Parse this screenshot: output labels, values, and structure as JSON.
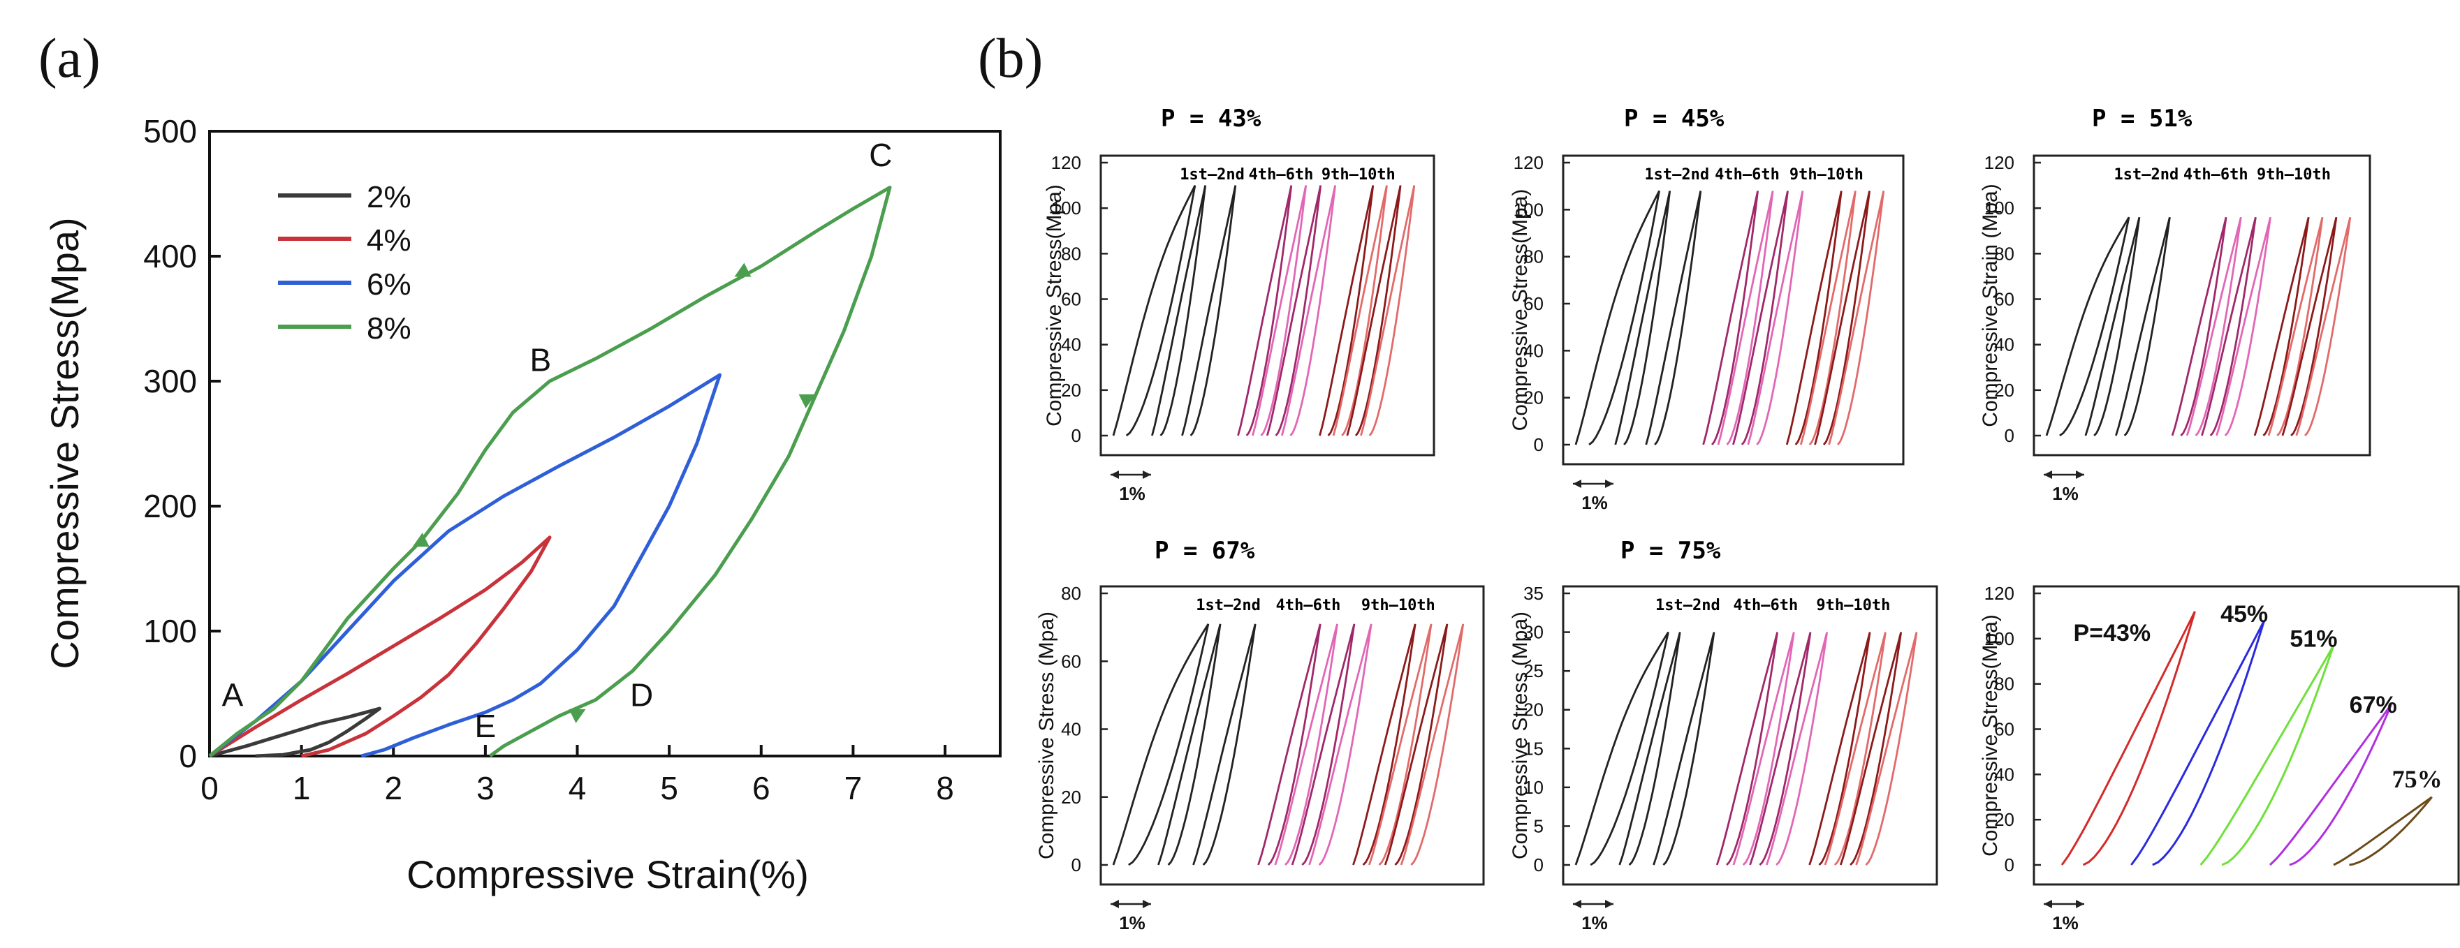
{
  "panels": {
    "a_label": "(a)",
    "b_label": "(b)"
  },
  "colors": {
    "s2": "#3a3a3a",
    "s4": "#c8323a",
    "s6": "#2f5fd8",
    "s8": "#4a9e4e",
    "black": "#222222",
    "magenta": "#a0286a",
    "pink": "#e266b6",
    "maroon": "#8c1a1a",
    "salmon": "#e26a6a",
    "p43": "#d42a2a",
    "p45": "#2a2ae0",
    "p51": "#6ee03a",
    "p67": "#b030e0",
    "p75": "#6b4a1a"
  },
  "chart_data": [
    {
      "id": "a",
      "type": "line",
      "title": "",
      "xlabel": "Compressive Strain(%)",
      "ylabel": "Compressive Stress(Mpa)",
      "xlim": [
        0,
        8.6
      ],
      "ylim": [
        0,
        500
      ],
      "xticks": [
        0,
        1,
        2,
        3,
        4,
        5,
        6,
        7,
        8
      ],
      "yticks": [
        0,
        100,
        200,
        300,
        400,
        500
      ],
      "legend": [
        "2%",
        "4%",
        "6%",
        "8%"
      ],
      "legend_position": "top-left",
      "series": [
        {
          "name": "2%",
          "color_key": "s2",
          "x": [
            0,
            0.4,
            0.8,
            1.2,
            1.5,
            1.7,
            1.85,
            1.7,
            1.5,
            1.3,
            1.1,
            0.8,
            0.5
          ],
          "y": [
            0,
            8,
            17,
            26,
            31,
            35,
            38,
            30,
            20,
            11,
            5,
            1,
            0
          ]
        },
        {
          "name": "4%",
          "color_key": "s4",
          "x": [
            0,
            0.5,
            1.0,
            1.5,
            2.0,
            2.5,
            3.0,
            3.4,
            3.7,
            3.5,
            3.2,
            2.9,
            2.6,
            2.3,
            2.0,
            1.7,
            1.3,
            1.0
          ],
          "y": [
            0,
            23,
            45,
            66,
            88,
            110,
            133,
            155,
            175,
            148,
            118,
            90,
            65,
            47,
            32,
            18,
            5,
            0
          ]
        },
        {
          "name": "6%",
          "color_key": "s6",
          "x": [
            0,
            0.5,
            1.0,
            1.5,
            2.0,
            2.6,
            3.2,
            3.8,
            4.4,
            5.0,
            5.55,
            5.3,
            5.0,
            4.7,
            4.4,
            4.0,
            3.6,
            3.3,
            3.0,
            2.6,
            2.2,
            1.9,
            1.65
          ],
          "y": [
            0,
            28,
            60,
            100,
            140,
            180,
            208,
            232,
            255,
            280,
            305,
            250,
            200,
            160,
            120,
            85,
            58,
            45,
            35,
            25,
            14,
            5,
            0
          ]
        },
        {
          "name": "8%",
          "color_key": "s8",
          "x": [
            0,
            0.3,
            0.7,
            1.0,
            1.5,
            2.0,
            2.3,
            2.7,
            3.0,
            3.3,
            3.7,
            4.2,
            4.8,
            5.4,
            6.0,
            6.6,
            7.0,
            7.4,
            7.2,
            6.9,
            6.6,
            6.3,
            5.9,
            5.5,
            5.0,
            4.6,
            4.2,
            3.8,
            3.5,
            3.2,
            3.05
          ],
          "y": [
            0,
            18,
            38,
            60,
            110,
            150,
            172,
            210,
            245,
            275,
            300,
            318,
            342,
            368,
            392,
            420,
            438,
            455,
            400,
            340,
            290,
            240,
            190,
            145,
            100,
            68,
            45,
            32,
            20,
            8,
            0
          ]
        }
      ],
      "annotations": [
        {
          "text": "A",
          "x": 0.25,
          "y": 40
        },
        {
          "text": "B",
          "x": 3.6,
          "y": 308
        },
        {
          "text": "C",
          "x": 7.3,
          "y": 472
        },
        {
          "text": "D",
          "x": 4.7,
          "y": 40
        },
        {
          "text": "E",
          "x": 3.0,
          "y": 15
        }
      ]
    },
    {
      "id": "b1",
      "type": "line",
      "title": "P = 43%",
      "ylabel": "Compressive Stress(Mpa)",
      "ylim": [
        0,
        120
      ],
      "yticks": [
        0,
        20,
        40,
        60,
        80,
        100,
        120
      ],
      "peak": 110,
      "group_labels": [
        "1st—2nd",
        "4th—6th",
        "9th—10th"
      ],
      "scale_label": "1%",
      "groups": [
        [
          0.0,
          0.45,
          0.8
        ],
        [
          1.45,
          1.62,
          1.79,
          1.96
        ],
        [
          2.4,
          2.56,
          2.72,
          2.88
        ]
      ]
    },
    {
      "id": "b2",
      "type": "line",
      "title": "P = 45%",
      "ylabel": "Compressive Stress(Mpa)",
      "ylim": [
        0,
        120
      ],
      "yticks": [
        0,
        20,
        40,
        60,
        80,
        100,
        120
      ],
      "peak": 108,
      "group_labels": [
        "1st—2nd",
        "4th—6th",
        "9th—10th"
      ],
      "scale_label": "1%",
      "groups": [
        [
          0.0,
          0.45,
          0.8
        ],
        [
          1.45,
          1.62,
          1.79,
          1.96
        ],
        [
          2.4,
          2.56,
          2.72,
          2.88
        ]
      ]
    },
    {
      "id": "b3",
      "type": "line",
      "title": "P = 51%",
      "ylabel": "Compressive Strain (Mpa)",
      "ylim": [
        0,
        120
      ],
      "yticks": [
        0,
        20,
        40,
        60,
        80,
        100,
        120
      ],
      "peak": 96,
      "group_labels": [
        "1st—2nd",
        "4th—6th",
        "9th—10th"
      ],
      "scale_label": "1%",
      "groups": [
        [
          0.0,
          0.45,
          0.8
        ],
        [
          1.45,
          1.62,
          1.79,
          1.96
        ],
        [
          2.4,
          2.56,
          2.72,
          2.88
        ]
      ]
    },
    {
      "id": "b4",
      "type": "line",
      "title": "P = 67%",
      "ylabel": "Compressive Stress (Mpa)",
      "ylim": [
        0,
        80
      ],
      "yticks": [
        0,
        20,
        40,
        60,
        80
      ],
      "peak": 71,
      "group_labels": [
        "1st—2nd",
        "4th—6th",
        "9th—10th"
      ],
      "scale_label": "1%",
      "groups": [
        [
          0.0,
          0.45,
          0.8
        ],
        [
          1.45,
          1.62,
          1.79,
          1.96
        ],
        [
          2.4,
          2.56,
          2.72,
          2.88
        ]
      ]
    },
    {
      "id": "b5",
      "type": "line",
      "title": "P = 75%",
      "ylabel": "Compressive Stress (Mpa)",
      "ylim": [
        0,
        35
      ],
      "yticks": [
        0,
        5,
        10,
        15,
        20,
        25,
        30,
        35
      ],
      "peak": 30,
      "group_labels": [
        "1st—2nd",
        "4th—6th",
        "9th—10th"
      ],
      "scale_label": "1%",
      "groups": [
        [
          0.0,
          0.45,
          0.8
        ],
        [
          1.45,
          1.62,
          1.79,
          1.96
        ],
        [
          2.4,
          2.56,
          2.72,
          2.88
        ]
      ]
    },
    {
      "id": "b6",
      "type": "line",
      "title": "",
      "ylabel": "Compressive Stress(Mpa)",
      "ylim": [
        0,
        120
      ],
      "yticks": [
        0,
        20,
        40,
        60,
        80,
        100,
        120
      ],
      "scale_label": "1%",
      "series": [
        {
          "name": "P=43%",
          "color_key": "p43",
          "x0": 0.0,
          "x1": 1.15,
          "peak": 112
        },
        {
          "name": "45%",
          "color_key": "p45",
          "x0": 0.6,
          "x1": 1.75,
          "peak": 108
        },
        {
          "name": "51%",
          "color_key": "p51",
          "x0": 1.2,
          "x1": 2.35,
          "peak": 97
        },
        {
          "name": "67%",
          "color_key": "p67",
          "x0": 1.8,
          "x1": 2.85,
          "peak": 71
        },
        {
          "name": "75%",
          "color_key": "p75",
          "x0": 2.35,
          "x1": 3.2,
          "peak": 30
        }
      ]
    }
  ]
}
